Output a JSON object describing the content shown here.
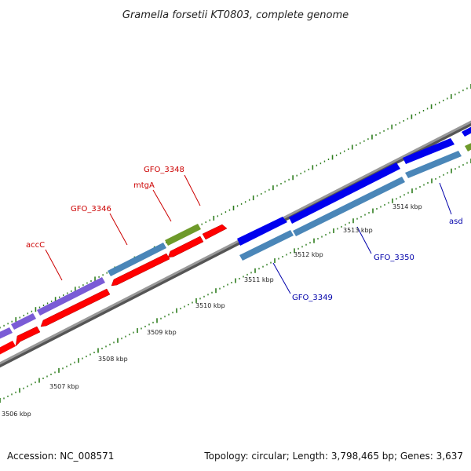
{
  "title": "Gramella forsetii KT0803, complete genome",
  "footer": {
    "accession": "Accession: NC_008571",
    "summary": "Topology: circular; Length: 3,798,465 bp; Genes: 3,637"
  },
  "colors": {
    "backbone": "#888888",
    "tick": "#2e7d1e",
    "gene_red": "#ff0000",
    "gene_blue": "#0000ee",
    "gene_steel": "#4a86b8",
    "gene_purple": "#7a5cd6",
    "gene_olive": "#6e9a2a",
    "label_red": "#cc0000",
    "label_blue": "#0000aa"
  },
  "ticks": [
    "3506 kbp",
    "3507 kbp",
    "3508 kbp",
    "3509 kbp",
    "3510 kbp",
    "3511 kbp",
    "3512 kbp",
    "3513 kbp",
    "3514 kbp"
  ],
  "gene_labels": {
    "accC": "accC",
    "GFO_3346": "GFO_3346",
    "mtgA": "mtgA",
    "GFO_3348": "GFO_3348",
    "GFO_3349": "GFO_3349",
    "GFO_3350": "GFO_3350",
    "asd": "asd"
  }
}
